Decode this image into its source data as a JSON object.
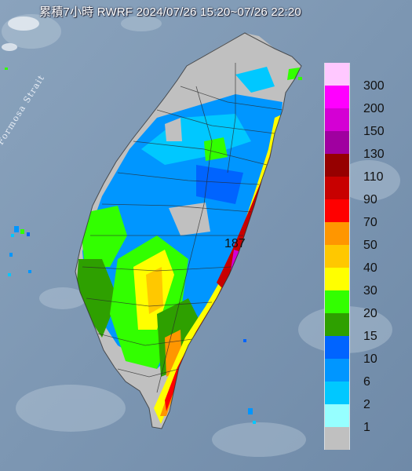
{
  "title": "累積7小時 RWRF 2024/07/26 15:20~07/26 22:20",
  "map": {
    "sea_label": "Formosa Strait",
    "max_value_label": "187"
  },
  "legend": {
    "items": [
      {
        "label": "300",
        "color": "#ffc8ff"
      },
      {
        "label": "200",
        "color": "#ff00ff"
      },
      {
        "label": "150",
        "color": "#d400d4"
      },
      {
        "label": "130",
        "color": "#a000a0"
      },
      {
        "label": "110",
        "color": "#960000"
      },
      {
        "label": "90",
        "color": "#c80000"
      },
      {
        "label": "70",
        "color": "#ff0000"
      },
      {
        "label": "50",
        "color": "#ff9600"
      },
      {
        "label": "40",
        "color": "#ffc800"
      },
      {
        "label": "30",
        "color": "#ffff00"
      },
      {
        "label": "20",
        "color": "#32ff00"
      },
      {
        "label": "15",
        "color": "#2ea000"
      },
      {
        "label": "10",
        "color": "#0064ff"
      },
      {
        "label": "6",
        "color": "#0096ff"
      },
      {
        "label": "2",
        "color": "#00c8ff"
      },
      {
        "label": "1",
        "color": "#96ffff"
      },
      {
        "label": "",
        "color": "#c0c0c0"
      }
    ]
  }
}
